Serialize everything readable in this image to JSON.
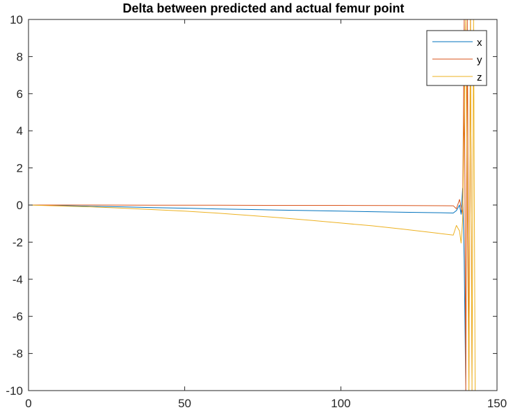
{
  "chart_data": {
    "type": "line",
    "title": "Delta between predicted and actual femur point",
    "xlabel": "",
    "ylabel": "",
    "xlim": [
      0,
      150
    ],
    "ylim": [
      -10,
      10
    ],
    "x_ticks": [
      0,
      50,
      100,
      150
    ],
    "y_ticks": [
      -10,
      -8,
      -6,
      -4,
      -2,
      0,
      2,
      4,
      6,
      8,
      10
    ],
    "x_tick_labels": [
      "0",
      "50",
      "100",
      "150"
    ],
    "y_tick_labels": [
      "-10",
      "-8",
      "-6",
      "-4",
      "-2",
      "0",
      "2",
      "4",
      "6",
      "8",
      "10"
    ],
    "grid": false,
    "legend_position": "top-right",
    "series": [
      {
        "name": "x",
        "color": "#0072BD",
        "x": [
          0,
          10,
          20,
          30,
          40,
          50,
          60,
          70,
          80,
          90,
          100,
          110,
          120,
          130,
          136,
          137,
          138,
          138.5,
          139,
          139.5,
          140
        ],
        "y": [
          0,
          -0.03,
          -0.07,
          -0.1,
          -0.14,
          -0.17,
          -0.21,
          -0.24,
          -0.27,
          -0.3,
          -0.33,
          -0.36,
          -0.39,
          -0.41,
          -0.43,
          -0.3,
          0.0,
          -0.5,
          0.9,
          -3.0,
          -10
        ]
      },
      {
        "name": "y",
        "color": "#D95319",
        "x": [
          0,
          20,
          40,
          60,
          80,
          100,
          120,
          136,
          137,
          138,
          139,
          139.5,
          140,
          140.5,
          141,
          141.5,
          142
        ],
        "y": [
          0,
          0,
          -0.01,
          -0.01,
          -0.02,
          -0.02,
          -0.03,
          -0.04,
          -0.2,
          0.3,
          -0.5,
          10,
          -10,
          10,
          -10,
          10,
          -10
        ]
      },
      {
        "name": "z",
        "color": "#EDB120",
        "x": [
          0,
          10,
          20,
          30,
          40,
          50,
          60,
          70,
          80,
          90,
          100,
          110,
          120,
          130,
          136,
          137,
          138,
          138.5,
          139,
          140,
          141,
          141.5,
          142,
          142.5,
          143
        ],
        "y": [
          0,
          -0.05,
          -0.1,
          -0.17,
          -0.25,
          -0.33,
          -0.43,
          -0.55,
          -0.68,
          -0.82,
          -0.97,
          -1.12,
          -1.3,
          -1.5,
          -1.62,
          -1.1,
          -1.4,
          -2.05,
          -0.8,
          10,
          -10,
          10,
          -10,
          10,
          -10
        ]
      }
    ]
  }
}
